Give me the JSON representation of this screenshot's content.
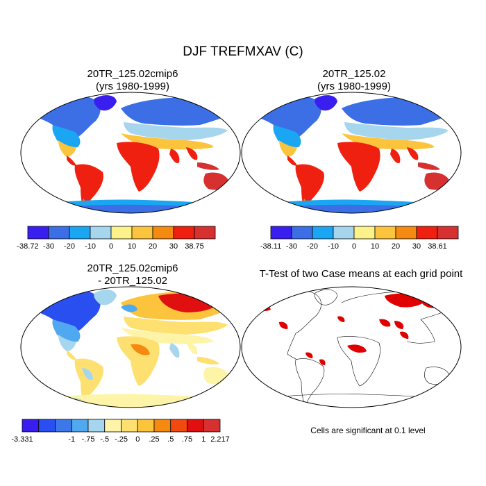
{
  "title": "DJF TREFMXAV (C)",
  "colors": {
    "ocean": "#ffffff",
    "outline": "#000000",
    "signif": "#e00000"
  },
  "panels": [
    {
      "id": "case1",
      "title_line1": "20TR_125.02cmip6",
      "title_line2": "(yrs 1980-1999)",
      "colorbar": {
        "colors": [
          "#3a1ef0",
          "#3c6fe6",
          "#1aa6f2",
          "#a6d6ee",
          "#fdf28a",
          "#fcc43c",
          "#f58a10",
          "#f02010",
          "#d73030"
        ],
        "labels": [
          "-38.72",
          "-30",
          "-20",
          "-10",
          "0",
          "10",
          "20",
          "30",
          "38.75"
        ]
      }
    },
    {
      "id": "case2",
      "title_line1": "20TR_125.02",
      "title_line2": "(yrs 1980-1999)",
      "colorbar": {
        "colors": [
          "#3a1ef0",
          "#3c6fe6",
          "#1aa6f2",
          "#a6d6ee",
          "#fdf28a",
          "#fcc43c",
          "#f58a10",
          "#f02010",
          "#d73030"
        ],
        "labels": [
          "-38.11",
          "-30",
          "-20",
          "-10",
          "0",
          "10",
          "20",
          "30",
          "38.61"
        ]
      }
    },
    {
      "id": "diff",
      "title_line1": "20TR_125.02cmip6",
      "title_line2": "- 20TR_125.02",
      "colorbar": {
        "colors": [
          "#3a1ef0",
          "#2a4ff0",
          "#3c78e8",
          "#4fa8f0",
          "#a6d6ee",
          "#fdf4a8",
          "#fde070",
          "#fcc43c",
          "#f58a10",
          "#f04a10",
          "#e01010",
          "#d73030"
        ],
        "labels": [
          "-3.331",
          "-1",
          "-.75",
          "-.5",
          "-.25",
          "0",
          ".25",
          ".5",
          ".75",
          "1",
          "2.217"
        ]
      }
    },
    {
      "id": "ttest",
      "title_line1": "T-Test of two Case means at each grid point",
      "note": "Cells are significant at 0.1 level"
    }
  ]
}
